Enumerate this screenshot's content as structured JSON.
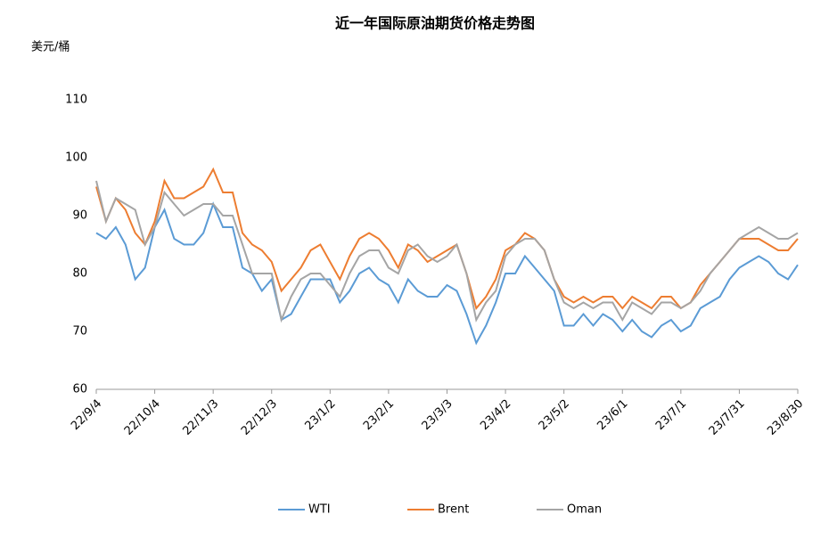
{
  "chart_data": {
    "type": "line",
    "title": "近一年国际原油期货价格走势图",
    "y_label": "美元/桶",
    "categories": [
      "22/9/4",
      null,
      null,
      null,
      null,
      null,
      "22/10/4",
      null,
      null,
      null,
      null,
      null,
      "22/11/3",
      null,
      null,
      null,
      null,
      null,
      "22/12/3",
      null,
      null,
      null,
      null,
      null,
      "23/1/2",
      null,
      null,
      null,
      null,
      null,
      "23/2/1",
      null,
      null,
      null,
      null,
      null,
      "23/3/3",
      null,
      null,
      null,
      null,
      null,
      "23/4/2",
      null,
      null,
      null,
      null,
      null,
      "23/5/2",
      null,
      null,
      null,
      null,
      null,
      "23/6/1",
      null,
      null,
      null,
      null,
      null,
      "23/7/1",
      null,
      null,
      null,
      null,
      null,
      "23/7/31",
      null,
      null,
      null,
      null,
      null,
      "23/8/30"
    ],
    "series": [
      {
        "name": "WTI",
        "color": "#5b9bd5",
        "values": [
          87,
          86,
          88,
          85,
          79,
          81,
          88,
          91,
          86,
          85,
          85,
          87,
          92,
          88,
          88,
          81,
          80,
          77,
          79,
          72,
          73,
          76,
          79,
          79,
          79,
          75,
          77,
          80,
          81,
          79,
          78,
          75,
          79,
          77,
          76,
          76,
          78,
          77,
          73,
          68,
          71,
          75,
          80,
          80,
          83,
          81,
          79,
          77,
          71,
          71,
          73,
          71,
          73,
          72,
          70,
          72,
          70,
          69,
          71,
          72,
          70,
          71,
          74,
          75,
          76,
          79,
          81,
          82,
          83,
          82,
          80,
          79,
          81.5
        ]
      },
      {
        "name": "Brent",
        "color": "#ed7d31",
        "values": [
          95,
          89,
          93,
          91,
          87,
          85,
          89,
          96,
          93,
          93,
          94,
          95,
          98,
          94,
          94,
          87,
          85,
          84,
          82,
          77,
          79,
          81,
          84,
          85,
          82,
          79,
          83,
          86,
          87,
          86,
          84,
          81,
          85,
          84,
          82,
          83,
          84,
          85,
          80,
          74,
          76,
          79,
          84,
          85,
          87,
          86,
          84,
          79,
          76,
          75,
          76,
          75,
          76,
          76,
          74,
          76,
          75,
          74,
          76,
          76,
          74,
          75,
          78,
          80,
          82,
          84,
          86,
          86,
          86,
          85,
          84,
          84,
          86
        ]
      },
      {
        "name": "Oman",
        "color": "#a5a5a5",
        "values": [
          96,
          89,
          93,
          92,
          91,
          85,
          88,
          94,
          92,
          90,
          91,
          92,
          92,
          90,
          90,
          85,
          80,
          80,
          80,
          72,
          76,
          79,
          80,
          80,
          78,
          76,
          80,
          83,
          84,
          84,
          81,
          80,
          84,
          85,
          83,
          82,
          83,
          85,
          80,
          72,
          75,
          77,
          83,
          85,
          86,
          86,
          84,
          79,
          75,
          74,
          75,
          74,
          75,
          75,
          72,
          75,
          74,
          73,
          75,
          75,
          74,
          75,
          77,
          80,
          82,
          84,
          86,
          87,
          88,
          87,
          86,
          86,
          87
        ]
      }
    ],
    "ylim": [
      60,
      110
    ],
    "yticks": [
      60,
      70,
      80,
      90,
      100,
      110
    ],
    "grid": false
  }
}
